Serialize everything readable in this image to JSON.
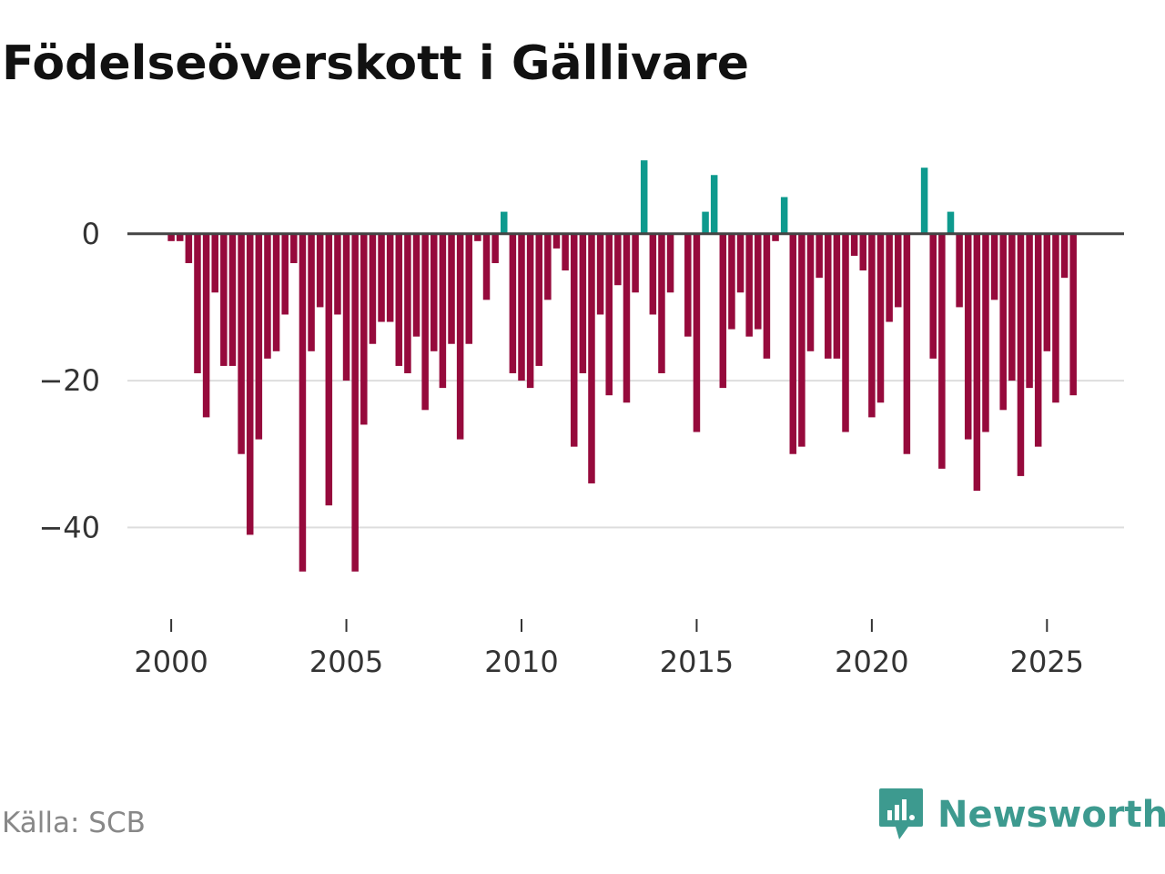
{
  "chart_data": {
    "type": "bar",
    "title": "Födelseöverskott i Gällivare",
    "xlabel": "",
    "ylabel": "",
    "ylim": [
      -50,
      12
    ],
    "xlim": [
      1998.75,
      2027.2
    ],
    "y_ticks": [
      0,
      -20,
      -40
    ],
    "y_tick_labels": [
      "0",
      "−20",
      "−40"
    ],
    "x_ticks": [
      2000,
      2005,
      2010,
      2015,
      2020,
      2025
    ],
    "x_tick_labels": [
      "2000",
      "2005",
      "2010",
      "2015",
      "2020",
      "2025"
    ],
    "grid": true,
    "colors": {
      "positive": "#0e9a8e",
      "negative": "#960a3c",
      "zero_line": "#444444",
      "grid": "#dddddd"
    },
    "frequency": "quarterly",
    "start": [
      2000,
      1
    ],
    "values": [
      -1,
      -1,
      -4,
      -19,
      -25,
      -8,
      -18,
      -18,
      -30,
      -41,
      -28,
      -17,
      -16,
      -11,
      -4,
      -46,
      -16,
      -10,
      -37,
      -11,
      -20,
      -46,
      -26,
      -15,
      -12,
      -12,
      -18,
      -19,
      -14,
      -24,
      -16,
      -21,
      -15,
      -28,
      -15,
      -1,
      -9,
      -4,
      3,
      -19,
      -20,
      -21,
      -18,
      -9,
      -2,
      -5,
      -29,
      -19,
      -34,
      -11,
      -22,
      -7,
      -23,
      -8,
      10,
      -11,
      -19,
      -8,
      0,
      -14,
      -27,
      3,
      8,
      -21,
      -13,
      -8,
      -14,
      -13,
      -17,
      -1,
      5,
      -30,
      -29,
      -16,
      -6,
      -17,
      -17,
      -27,
      -3,
      -5,
      -25,
      -23,
      -12,
      -10,
      -30,
      0,
      9,
      -17,
      -32,
      3,
      -10,
      -28,
      -35,
      -27,
      -9,
      -24,
      -20,
      -33,
      -21,
      -29,
      -16,
      -23,
      -6,
      -22
    ]
  },
  "source_label": "Källa: SCB",
  "brand_label": "Newsworthy",
  "brand_icon": "newsworthy-logo-icon"
}
